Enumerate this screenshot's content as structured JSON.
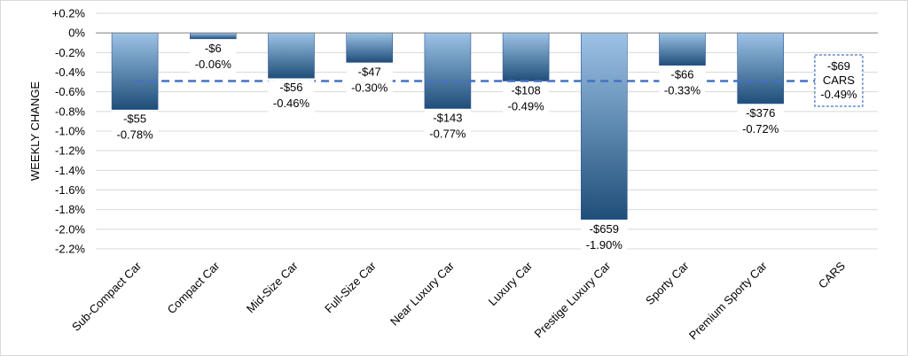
{
  "chart_data": {
    "type": "bar",
    "title": "",
    "xlabel": "",
    "ylabel": "WEEKLY CHANGE",
    "ylim": [
      -2.2,
      0.2
    ],
    "ytick_step": 0.2,
    "grid": true,
    "categories": [
      "Sub-Compact Car",
      "Compact Car",
      "Mid-Size Car",
      "Full-Size Car",
      "Near Luxury Car",
      "Luxury Car",
      "Prestige Luxury Car",
      "Sporty Car",
      "Premium Sporty Car",
      "CARS"
    ],
    "values": [
      -0.78,
      -0.06,
      -0.46,
      -0.3,
      -0.77,
      -0.49,
      -1.9,
      -0.33,
      -0.72,
      -0.49
    ],
    "dollar_labels": [
      "-$55",
      "-$6",
      "-$56",
      "-$47",
      "-$143",
      "-$108",
      "-$659",
      "-$66",
      "-$376",
      "-$69"
    ],
    "percent_labels": [
      "-0.78%",
      "-0.06%",
      "-0.46%",
      "-0.30%",
      "-0.77%",
      "-0.49%",
      "-1.90%",
      "-0.33%",
      "-0.72%",
      "-0.49%"
    ],
    "average": {
      "value": -0.49,
      "label_dollar": "-$69",
      "label_name": "CARS",
      "label_percent": "-0.49%"
    },
    "colors": {
      "bar_light": "#9dc3e6",
      "bar_dark": "#1f4e79",
      "avg_line": "#4472c4",
      "grid": "#d9d9d9"
    }
  }
}
